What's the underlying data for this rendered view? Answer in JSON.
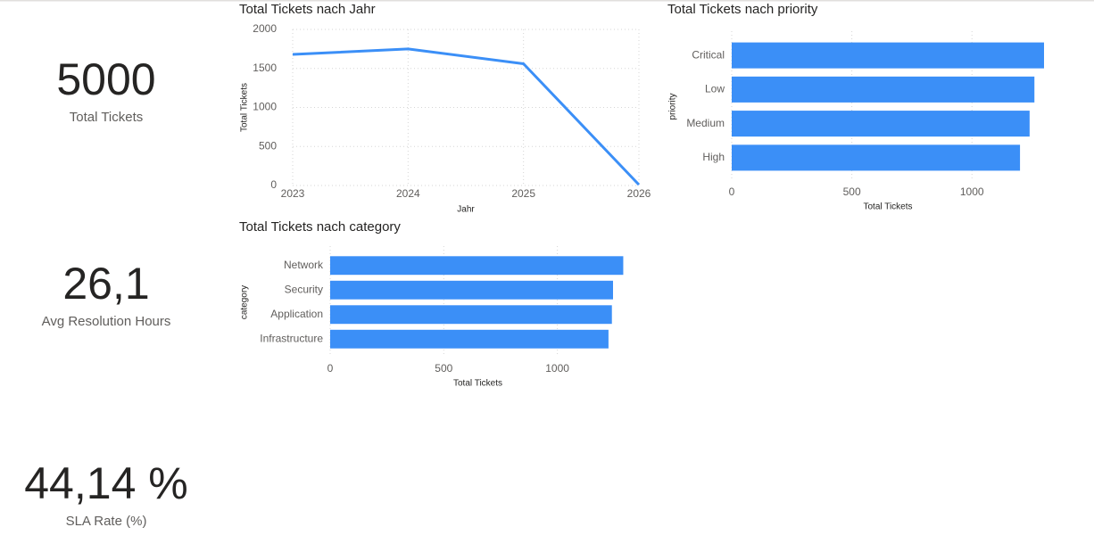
{
  "cards": [
    {
      "value": "5000",
      "label": "Total Tickets"
    },
    {
      "value": "26,1",
      "label": "Avg Resolution Hours"
    },
    {
      "value": "44,14 %",
      "label": "SLA Rate (%)"
    }
  ],
  "chart_data": [
    {
      "type": "line",
      "title": "Total Tickets nach Jahr",
      "x_label": "Jahr",
      "y_label": "Total Tickets",
      "x": [
        2023,
        2024,
        2025,
        2026
      ],
      "series": [
        {
          "name": "Total Tickets",
          "color": "#3b8ff7",
          "values": [
            1680,
            1750,
            1560,
            10
          ]
        }
      ],
      "xlim": [
        2023,
        2026
      ],
      "xticks": [
        2023,
        2024,
        2025,
        2026
      ],
      "ylim": [
        0,
        2000
      ],
      "yticks": [
        0,
        500,
        1000,
        1500,
        2000
      ],
      "grid": true
    },
    {
      "type": "bar",
      "horizontal": true,
      "title": "Total Tickets nach priority",
      "x_label": "Total Tickets",
      "y_label": "priority",
      "categories": [
        "Critical",
        "Low",
        "Medium",
        "High"
      ],
      "values": [
        1300,
        1260,
        1240,
        1200
      ],
      "color": "#3b8ff7",
      "xlim": [
        0,
        1300
      ],
      "xticks": [
        0,
        500,
        1000
      ],
      "grid": true
    },
    {
      "type": "bar",
      "horizontal": true,
      "title": "Total Tickets nach category",
      "x_label": "Total Tickets",
      "y_label": "category",
      "categories": [
        "Network",
        "Security",
        "Application",
        "Infrastructure"
      ],
      "values": [
        1290,
        1245,
        1240,
        1225
      ],
      "color": "#3b8ff7",
      "xlim": [
        0,
        1300
      ],
      "xticks": [
        0,
        500,
        1000
      ],
      "grid": true
    }
  ]
}
